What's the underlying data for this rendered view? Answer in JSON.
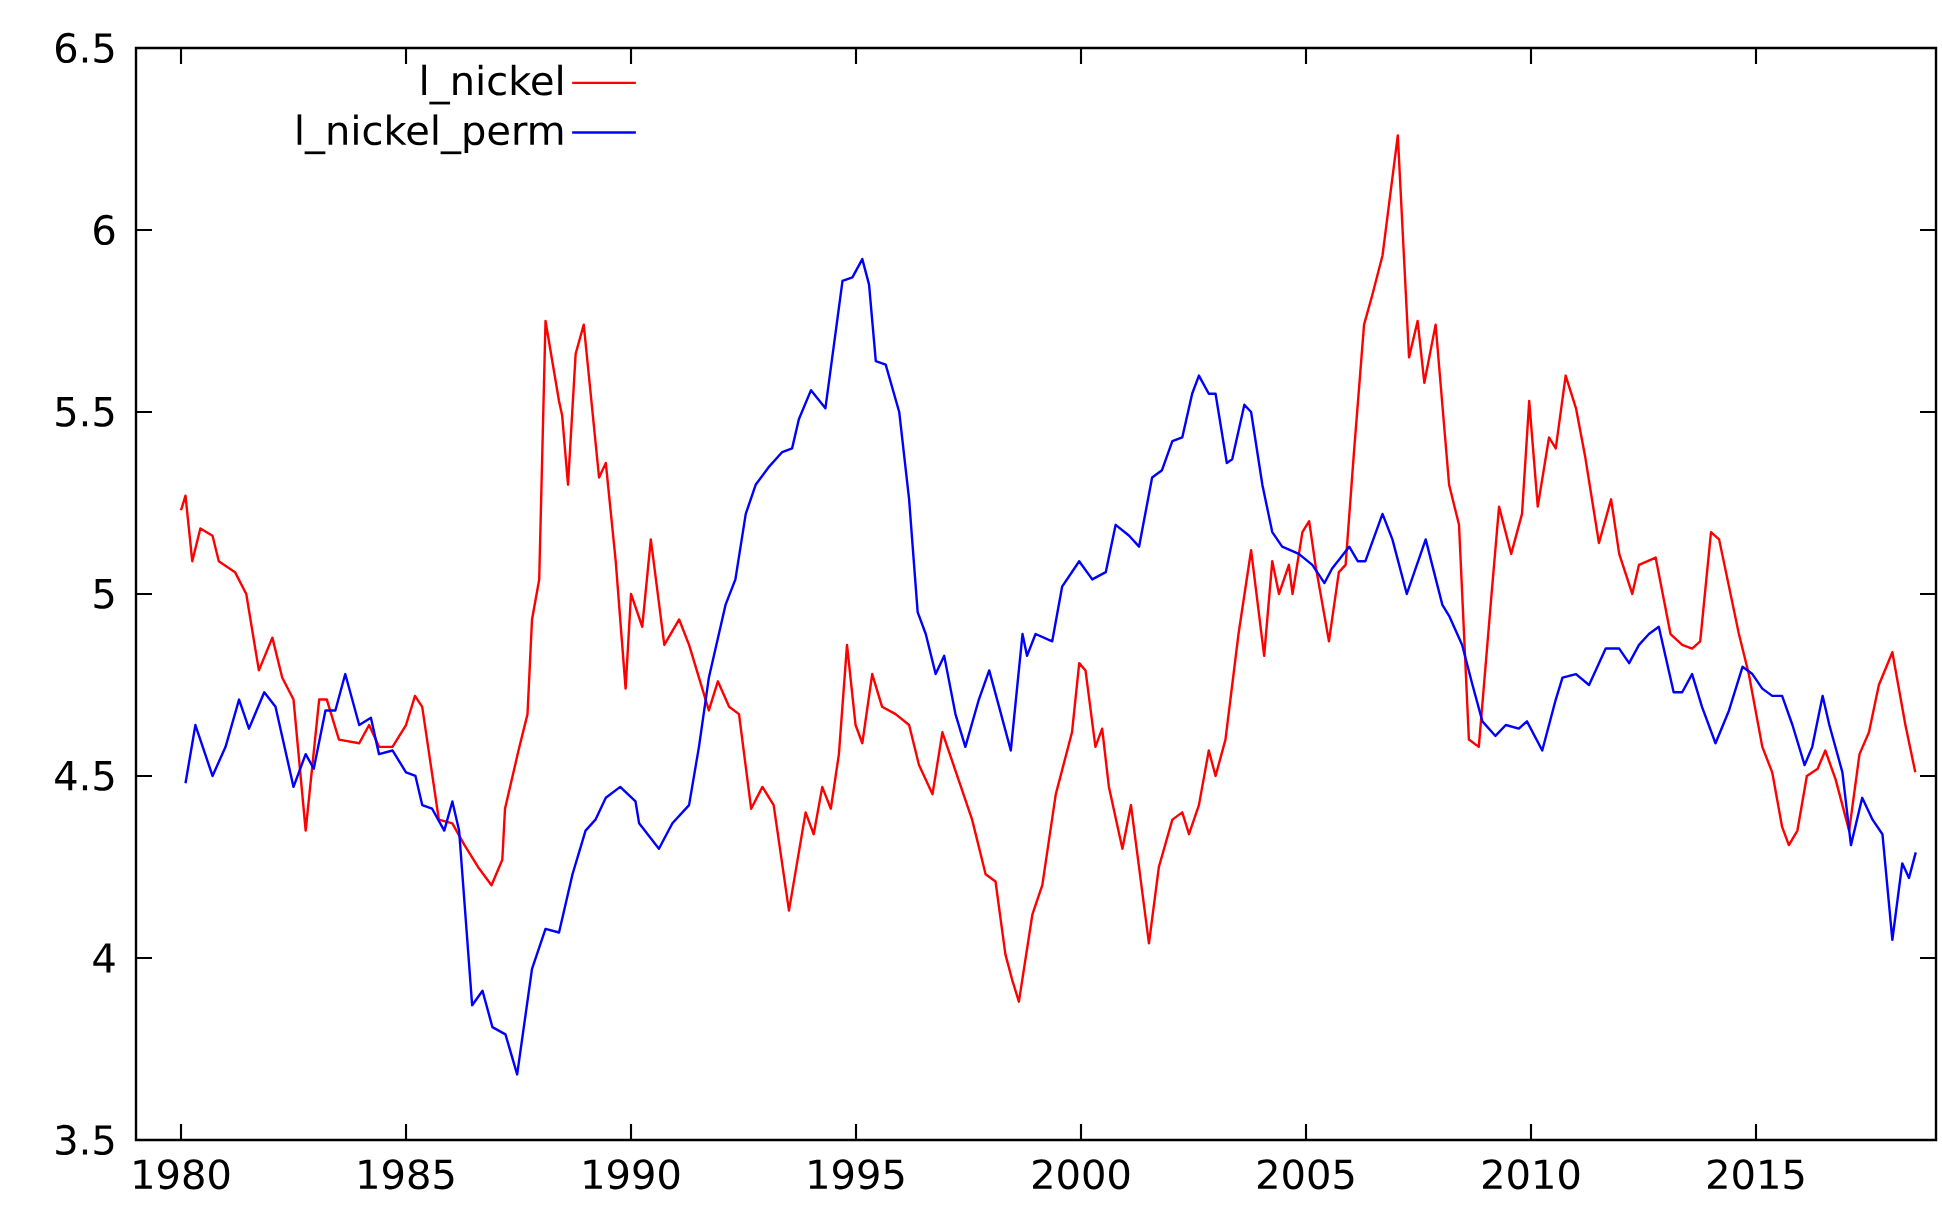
{
  "chart_data": {
    "type": "line",
    "xlim": [
      1979,
      2019
    ],
    "ylim": [
      3.5,
      6.5
    ],
    "xticks": [
      1980,
      1985,
      1990,
      1995,
      2000,
      2005,
      2010,
      2015
    ],
    "yticks": [
      3.5,
      4,
      4.5,
      5,
      5.5,
      6,
      6.5
    ],
    "grid": false,
    "legend": "top left",
    "marker": "none",
    "line_style": "solid",
    "series": [
      {
        "name": "l_nickel",
        "color": "#ff0000",
        "x": [
          1980.0,
          1980.1,
          1980.25,
          1980.43,
          1980.7,
          1980.84,
          1981.2,
          1981.45,
          1981.73,
          1982.03,
          1982.25,
          1982.5,
          1982.77,
          1983.07,
          1983.24,
          1983.51,
          1983.96,
          1984.18,
          1984.4,
          1984.7,
          1985.0,
          1985.2,
          1985.36,
          1985.73,
          1986.03,
          1986.3,
          1986.6,
          1986.9,
          1987.14,
          1987.2,
          1987.5,
          1987.7,
          1987.8,
          1987.96,
          1988.1,
          1988.4,
          1988.47,
          1988.6,
          1988.77,
          1988.95,
          1989.29,
          1989.44,
          1989.66,
          1989.88,
          1990.0,
          1990.25,
          1990.44,
          1990.74,
          1991.07,
          1991.29,
          1991.73,
          1991.93,
          1992.18,
          1992.4,
          1992.67,
          1992.92,
          1993.17,
          1993.51,
          1993.88,
          1994.06,
          1994.25,
          1994.44,
          1994.62,
          1994.8,
          1994.99,
          1995.14,
          1995.36,
          1995.58,
          1995.88,
          1996.18,
          1996.4,
          1996.7,
          1996.92,
          1997.14,
          1997.58,
          1997.88,
          1998.1,
          1998.32,
          1998.47,
          1998.62,
          1998.92,
          1999.14,
          1999.44,
          1999.8,
          1999.96,
          2000.1,
          2000.32,
          2000.47,
          2000.62,
          2000.92,
          2001.11,
          2001.51,
          2001.73,
          2002.03,
          2002.25,
          2002.4,
          2002.62,
          2002.84,
          2002.99,
          2003.21,
          2003.5,
          2003.78,
          2004.07,
          2004.25,
          2004.4,
          2004.62,
          2004.7,
          2004.92,
          2005.07,
          2005.21,
          2005.51,
          2005.73,
          2005.88,
          2006.06,
          2006.29,
          2006.47,
          2006.7,
          2007.04,
          2007.29,
          2007.48,
          2007.63,
          2007.88,
          2008.18,
          2008.4,
          2008.62,
          2008.84,
          2009.11,
          2009.29,
          2009.56,
          2009.8,
          2009.96,
          2010.15,
          2010.4,
          2010.55,
          2010.77,
          2011.0,
          2011.2,
          2011.51,
          2011.78,
          2011.96,
          2012.25,
          2012.4,
          2012.77,
          2013.1,
          2013.36,
          2013.58,
          2013.76,
          2014.0,
          2014.18,
          2014.4,
          2014.62,
          2014.84,
          2015.14,
          2015.36,
          2015.58,
          2015.73,
          2015.92,
          2016.13,
          2016.37,
          2016.54,
          2016.77,
          2017.07,
          2017.3,
          2017.51,
          2017.73,
          2018.03,
          2018.32,
          2018.54
        ],
        "values": [
          5.23,
          5.27,
          5.09,
          5.18,
          5.16,
          5.09,
          5.06,
          5.0,
          4.79,
          4.88,
          4.77,
          4.71,
          4.35,
          4.71,
          4.71,
          4.6,
          4.59,
          4.64,
          4.58,
          4.58,
          4.64,
          4.72,
          4.69,
          4.38,
          4.37,
          4.31,
          4.25,
          4.2,
          4.27,
          4.41,
          4.57,
          4.67,
          4.93,
          5.04,
          5.75,
          5.53,
          5.49,
          5.3,
          5.66,
          5.74,
          5.32,
          5.36,
          5.09,
          4.74,
          5.0,
          4.91,
          5.15,
          4.86,
          4.93,
          4.86,
          4.68,
          4.76,
          4.69,
          4.67,
          4.41,
          4.47,
          4.42,
          4.13,
          4.4,
          4.34,
          4.47,
          4.41,
          4.56,
          4.86,
          4.64,
          4.59,
          4.78,
          4.69,
          4.67,
          4.64,
          4.53,
          4.45,
          4.62,
          4.54,
          4.38,
          4.23,
          4.21,
          4.01,
          3.94,
          3.88,
          4.12,
          4.2,
          4.45,
          4.62,
          4.81,
          4.79,
          4.58,
          4.63,
          4.47,
          4.3,
          4.42,
          4.04,
          4.25,
          4.38,
          4.4,
          4.34,
          4.42,
          4.57,
          4.5,
          4.6,
          4.89,
          5.12,
          4.83,
          5.09,
          5.0,
          5.08,
          5.0,
          5.17,
          5.2,
          5.08,
          4.87,
          5.06,
          5.08,
          5.38,
          5.74,
          5.82,
          5.93,
          6.26,
          5.65,
          5.75,
          5.58,
          5.74,
          5.3,
          5.19,
          4.6,
          4.58,
          4.98,
          5.24,
          5.11,
          5.22,
          5.53,
          5.24,
          5.43,
          5.4,
          5.6,
          5.51,
          5.38,
          5.14,
          5.26,
          5.11,
          5.0,
          5.08,
          5.1,
          4.89,
          4.86,
          4.85,
          4.87,
          5.17,
          5.15,
          5.02,
          4.89,
          4.78,
          4.58,
          4.51,
          4.36,
          4.31,
          4.35,
          4.5,
          4.52,
          4.57,
          4.49,
          4.35,
          4.56,
          4.62,
          4.75,
          4.84,
          4.64,
          4.51
        ]
      },
      {
        "name": "l_nickel_perm",
        "color": "#0000ff",
        "x": [
          1980.1,
          1980.32,
          1980.7,
          1980.99,
          1981.29,
          1981.51,
          1981.85,
          1982.1,
          1982.5,
          1982.77,
          1982.95,
          1983.21,
          1983.43,
          1983.65,
          1983.96,
          1984.22,
          1984.4,
          1984.7,
          1985.0,
          1985.21,
          1985.36,
          1985.58,
          1985.85,
          1986.03,
          1986.18,
          1986.47,
          1986.7,
          1986.92,
          1987.21,
          1987.47,
          1987.8,
          1988.1,
          1988.4,
          1988.7,
          1988.99,
          1989.21,
          1989.44,
          1989.76,
          1990.1,
          1990.18,
          1990.62,
          1990.92,
          1991.29,
          1991.51,
          1991.73,
          1992.1,
          1992.32,
          1992.55,
          1992.77,
          1993.07,
          1993.36,
          1993.58,
          1993.73,
          1994.0,
          1994.32,
          1994.7,
          1994.92,
          1995.14,
          1995.29,
          1995.44,
          1995.66,
          1995.96,
          1996.18,
          1996.37,
          1996.55,
          1996.77,
          1996.96,
          1997.21,
          1997.43,
          1997.73,
          1997.96,
          1998.18,
          1998.44,
          1998.7,
          1998.8,
          1998.99,
          1999.36,
          1999.58,
          1999.96,
          2000.25,
          2000.55,
          2000.77,
          2001.07,
          2001.29,
          2001.58,
          2001.8,
          2002.03,
          2002.25,
          2002.47,
          2002.62,
          2002.84,
          2002.99,
          2003.24,
          2003.36,
          2003.63,
          2003.78,
          2004.03,
          2004.25,
          2004.47,
          2004.84,
          2005.14,
          2005.41,
          2005.58,
          2005.96,
          2006.15,
          2006.32,
          2006.7,
          2006.92,
          2007.24,
          2007.66,
          2008.03,
          2008.18,
          2008.47,
          2008.7,
          2008.92,
          2009.21,
          2009.44,
          2009.73,
          2009.91,
          2010.25,
          2010.55,
          2010.7,
          2011.0,
          2011.29,
          2011.66,
          2011.96,
          2012.18,
          2012.4,
          2012.62,
          2012.84,
          2013.17,
          2013.36,
          2013.58,
          2013.8,
          2014.1,
          2014.4,
          2014.7,
          2014.92,
          2015.14,
          2015.36,
          2015.58,
          2015.81,
          2016.08,
          2016.25,
          2016.48,
          2016.63,
          2016.92,
          2017.11,
          2017.36,
          2017.59,
          2017.81,
          2018.03,
          2018.25,
          2018.4,
          2018.55
        ],
        "values": [
          4.48,
          4.64,
          4.5,
          4.58,
          4.71,
          4.63,
          4.73,
          4.69,
          4.47,
          4.56,
          4.52,
          4.68,
          4.68,
          4.78,
          4.64,
          4.66,
          4.56,
          4.57,
          4.51,
          4.5,
          4.42,
          4.41,
          4.35,
          4.43,
          4.35,
          3.87,
          3.91,
          3.81,
          3.79,
          3.68,
          3.97,
          4.08,
          4.07,
          4.23,
          4.35,
          4.38,
          4.44,
          4.47,
          4.43,
          4.37,
          4.3,
          4.37,
          4.42,
          4.58,
          4.77,
          4.97,
          5.04,
          5.22,
          5.3,
          5.35,
          5.39,
          5.4,
          5.48,
          5.56,
          5.51,
          5.86,
          5.87,
          5.92,
          5.85,
          5.64,
          5.63,
          5.5,
          5.26,
          4.95,
          4.89,
          4.78,
          4.83,
          4.67,
          4.58,
          4.71,
          4.79,
          4.69,
          4.57,
          4.89,
          4.83,
          4.89,
          4.87,
          5.02,
          5.09,
          5.04,
          5.06,
          5.19,
          5.16,
          5.13,
          5.32,
          5.34,
          5.42,
          5.43,
          5.55,
          5.6,
          5.55,
          5.55,
          5.36,
          5.37,
          5.52,
          5.5,
          5.3,
          5.17,
          5.13,
          5.11,
          5.08,
          5.03,
          5.07,
          5.13,
          5.09,
          5.09,
          5.22,
          5.15,
          5.0,
          5.15,
          4.97,
          4.94,
          4.86,
          4.75,
          4.65,
          4.61,
          4.64,
          4.63,
          4.65,
          4.57,
          4.71,
          4.77,
          4.78,
          4.75,
          4.85,
          4.85,
          4.81,
          4.86,
          4.89,
          4.91,
          4.73,
          4.73,
          4.78,
          4.69,
          4.59,
          4.68,
          4.8,
          4.78,
          4.74,
          4.72,
          4.72,
          4.64,
          4.53,
          4.58,
          4.72,
          4.64,
          4.51,
          4.31,
          4.44,
          4.38,
          4.34,
          4.05,
          4.26,
          4.22,
          4.29
        ]
      }
    ]
  }
}
